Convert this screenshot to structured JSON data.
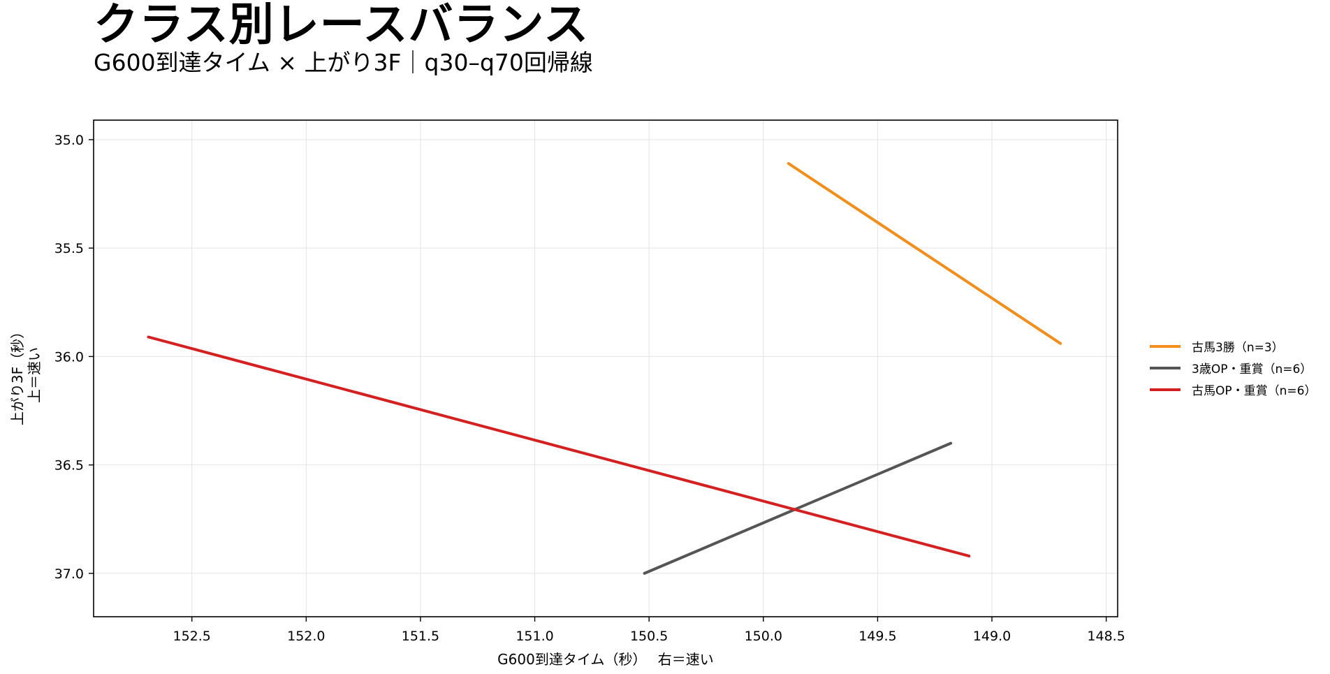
{
  "chart_data": {
    "type": "line",
    "title": "クラス別レースバランス",
    "subtitle": "G600到達タイム × 上がり3F｜q30–q70回帰線",
    "xlabel": "G600到達タイム（秒）　 右＝速い",
    "ylabel": "上がり3F（秒）",
    "ylabel2": "上＝速い",
    "xlim": [
      152.93,
      148.45
    ],
    "ylim": [
      37.2,
      34.91
    ],
    "x_reversed": true,
    "y_reversed": true,
    "xticks": [
      152.5,
      152.0,
      151.5,
      151.0,
      150.5,
      150.0,
      149.5,
      149.0,
      148.5
    ],
    "xtick_labels": [
      "152.5",
      "152.0",
      "151.5",
      "151.0",
      "150.5",
      "150.0",
      "149.5",
      "149.0",
      "148.5"
    ],
    "yticks": [
      35.0,
      35.5,
      36.0,
      36.5,
      37.0
    ],
    "ytick_labels": [
      "35.0",
      "35.5",
      "36.0",
      "36.5",
      "37.0"
    ],
    "grid": true,
    "legend_position": "right",
    "series": [
      {
        "name": "古馬3勝（n=3）",
        "color": "#f28e1c",
        "x": [
          149.89,
          148.7
        ],
        "y": [
          35.11,
          35.94
        ]
      },
      {
        "name": "3歳OP・重賞（n=6）",
        "color": "#555555",
        "x": [
          150.52,
          149.18
        ],
        "y": [
          37.0,
          36.4
        ]
      },
      {
        "name": "古馬OP・重賞（n=6）",
        "color": "#d42020",
        "x": [
          152.69,
          149.1
        ],
        "y": [
          35.91,
          36.92
        ]
      }
    ]
  }
}
